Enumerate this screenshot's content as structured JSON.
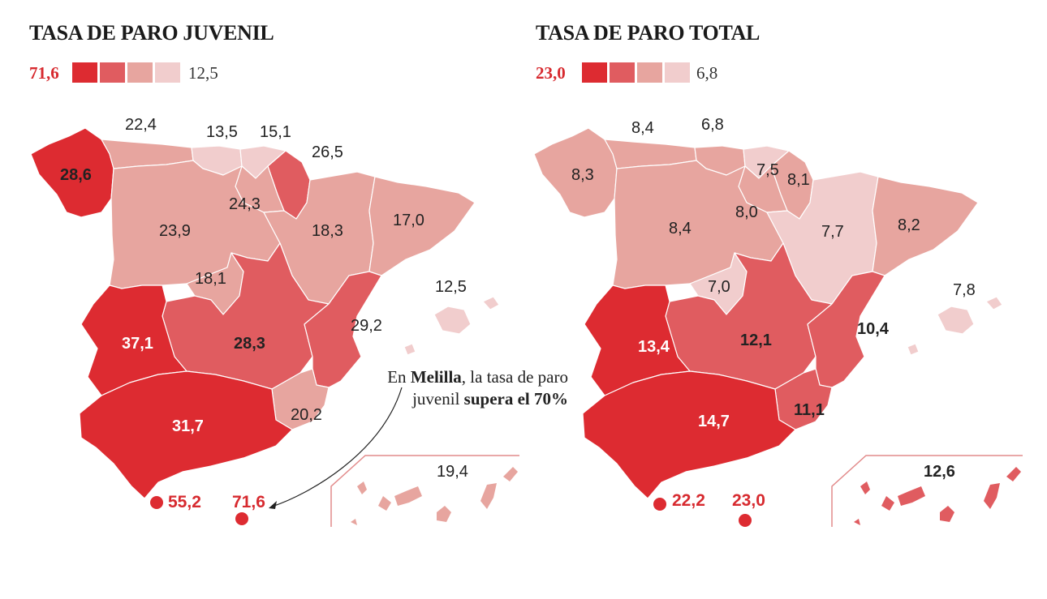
{
  "colors": {
    "scale": [
      "#dd2b31",
      "#e05c60",
      "#e7a59f",
      "#f1cdcd"
    ],
    "accent": "#d72a2f"
  },
  "youth": {
    "title": "TASA DE PARO JUVENIL",
    "legend_max": "71,6",
    "legend_min": "12,5",
    "regions": {
      "galicia": "28,6",
      "asturias": "22,4",
      "cantabria": "13,5",
      "pais_vasco": "15,1",
      "navarra": "26,5",
      "la_rioja": "24,3",
      "castilla_leon": "23,9",
      "aragon": "18,3",
      "cataluna": "17,0",
      "madrid": "18,1",
      "baleares": "12,5",
      "extremadura": "37,1",
      "castilla_la_mancha": "28,3",
      "valencia": "29,2",
      "murcia": "20,2",
      "andalucia": "31,7",
      "ceuta": "55,2",
      "melilla": "71,6",
      "canarias": "19,4"
    },
    "note": {
      "part1": "En ",
      "bold1": "Melilla",
      "part2": ", la tasa de paro juvenil ",
      "bold2": "supera el 70%"
    }
  },
  "total": {
    "title": "TASA DE PARO TOTAL",
    "legend_max": "23,0",
    "legend_min": "6,8",
    "regions": {
      "galicia": "8,3",
      "asturias": "8,4",
      "cantabria": "6,8",
      "pais_vasco": "7,5",
      "navarra": "8,1",
      "la_rioja": "8,0",
      "castilla_leon": "8,4",
      "aragon": "7,7",
      "cataluna": "8,2",
      "madrid": "7,0",
      "baleares": "7,8",
      "extremadura": "13,4",
      "castilla_la_mancha": "12,1",
      "valencia": "10,4",
      "murcia": "11,1",
      "andalucia": "14,7",
      "ceuta": "22,2",
      "melilla": "23,0",
      "canarias": "12,6"
    }
  }
}
